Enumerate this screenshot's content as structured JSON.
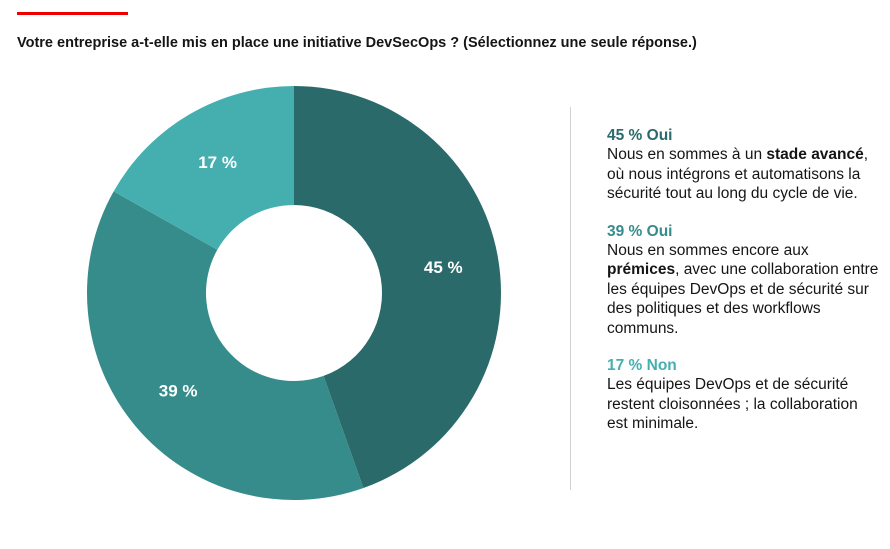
{
  "question": "Votre entreprise a-t-elle mis en place une initiative DevSecOps ? (Sélectionnez une seule réponse.)",
  "accent_color": "#ee0000",
  "chart_data": {
    "type": "pie",
    "donut": true,
    "categories": [
      "45 % Oui",
      "39 % Oui",
      "17 % Non"
    ],
    "values": [
      45,
      39,
      17
    ],
    "data_labels": [
      "45 %",
      "39 %",
      "17 %"
    ],
    "colors": [
      "#2a6a6a",
      "#368b8b",
      "#45afb0"
    ],
    "start": "top",
    "direction": "clockwise",
    "legend_placement": "right"
  },
  "legend": [
    {
      "title": "45 % Oui",
      "color": "#2a6a6a",
      "desc": [
        {
          "t": "Nous en sommes à un "
        },
        {
          "t": "stade avancé",
          "b": true
        },
        {
          "t": ", où nous intégrons et automatisons la sécurité tout au long du cycle de vie."
        }
      ]
    },
    {
      "title": "39 % Oui",
      "color": "#368b8b",
      "desc": [
        {
          "t": "Nous en sommes encore aux "
        },
        {
          "t": "prémices",
          "b": true
        },
        {
          "t": ", avec une collaboration entre les équipes DevOps et de sécurité sur des politiques et des workflows communs."
        }
      ]
    },
    {
      "title": "17 % Non",
      "color": "#45afb0",
      "desc": [
        {
          "t": "Les équipes DevOps et de sécurité restent cloisonnées ; la collaboration est minimale."
        }
      ]
    }
  ]
}
